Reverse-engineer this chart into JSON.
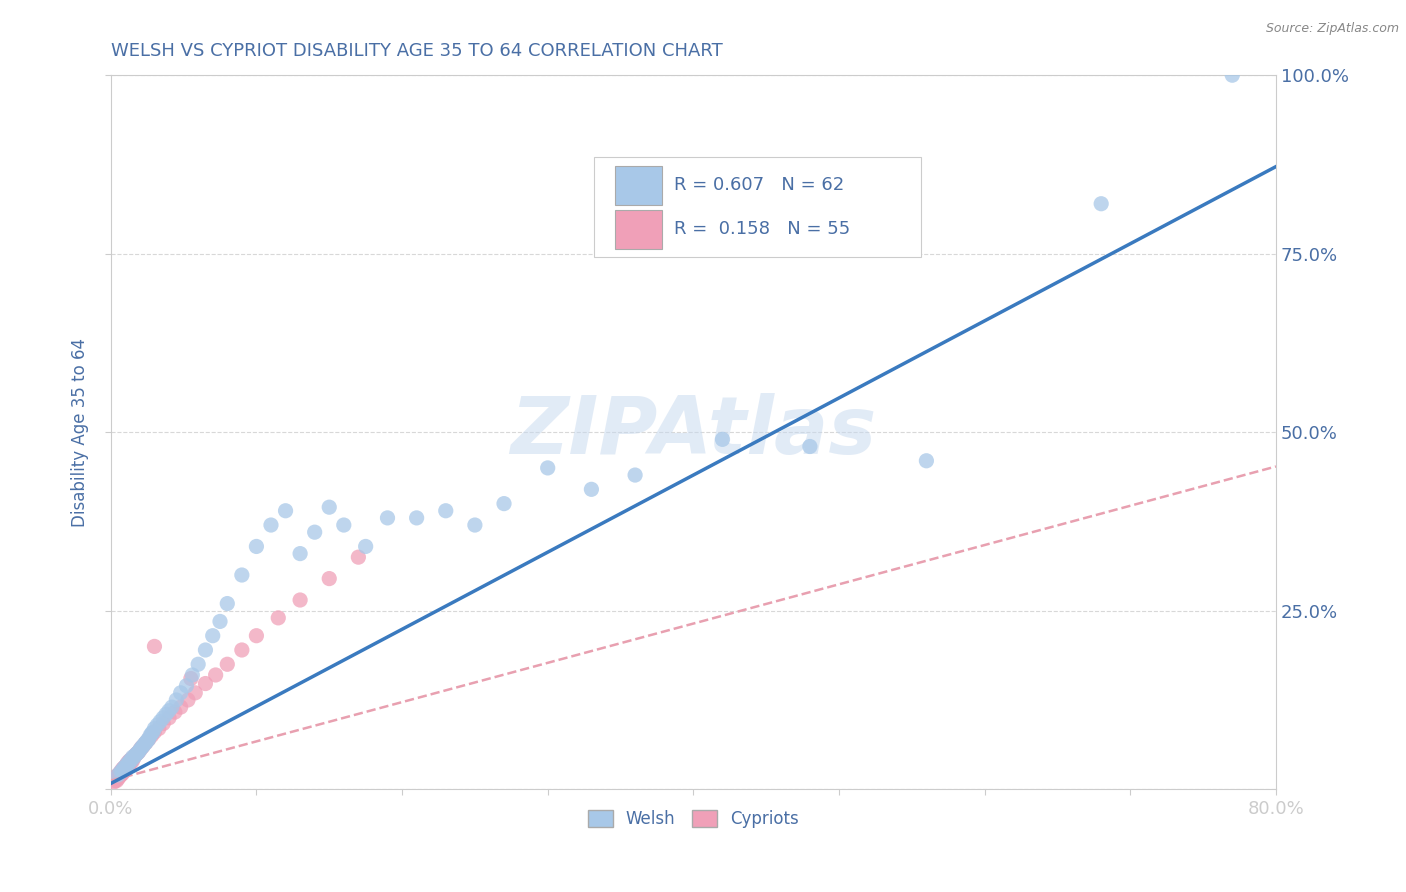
{
  "title": "WELSH VS CYPRIOT DISABILITY AGE 35 TO 64 CORRELATION CHART",
  "source_text": "Source: ZipAtlas.com",
  "ylabel": "Disability Age 35 to 64",
  "watermark": "ZIPAtlas",
  "xlim": [
    0.0,
    0.8
  ],
  "ylim": [
    0.0,
    1.0
  ],
  "xticks": [
    0.0,
    0.1,
    0.2,
    0.3,
    0.4,
    0.5,
    0.6,
    0.7,
    0.8
  ],
  "xticklabels": [
    "0.0%",
    "",
    "",
    "",
    "",
    "",
    "",
    "",
    "80.0%"
  ],
  "ytick_positions": [
    0.0,
    0.25,
    0.5,
    0.75,
    1.0
  ],
  "ytick_labels_right": [
    "",
    "25.0%",
    "50.0%",
    "75.0%",
    "100.0%"
  ],
  "welsh_color": "#a8c8e8",
  "cypriot_color": "#f0a0b8",
  "welsh_line_color": "#3a7abf",
  "cypriot_line_color": "#e8a0b0",
  "title_color": "#4a6fa5",
  "tick_label_color": "#4a6fa5",
  "legend_r_welsh": "0.607",
  "legend_n_welsh": "62",
  "legend_r_cypriot": "0.158",
  "legend_n_cypriot": "55",
  "welsh_x": [
    0.005,
    0.007,
    0.008,
    0.009,
    0.01,
    0.011,
    0.012,
    0.013,
    0.014,
    0.015,
    0.016,
    0.017,
    0.018,
    0.019,
    0.02,
    0.021,
    0.022,
    0.023,
    0.024,
    0.025,
    0.026,
    0.027,
    0.028,
    0.029,
    0.03,
    0.032,
    0.034,
    0.036,
    0.038,
    0.04,
    0.042,
    0.045,
    0.048,
    0.052,
    0.056,
    0.06,
    0.065,
    0.07,
    0.075,
    0.08,
    0.09,
    0.1,
    0.11,
    0.12,
    0.13,
    0.14,
    0.15,
    0.16,
    0.175,
    0.19,
    0.21,
    0.23,
    0.25,
    0.27,
    0.3,
    0.33,
    0.36,
    0.42,
    0.48,
    0.56,
    0.68,
    0.77
  ],
  "welsh_y": [
    0.02,
    0.025,
    0.025,
    0.03,
    0.03,
    0.035,
    0.035,
    0.04,
    0.04,
    0.045,
    0.045,
    0.048,
    0.05,
    0.052,
    0.055,
    0.058,
    0.06,
    0.063,
    0.065,
    0.068,
    0.07,
    0.075,
    0.078,
    0.08,
    0.085,
    0.09,
    0.095,
    0.1,
    0.105,
    0.11,
    0.115,
    0.125,
    0.135,
    0.145,
    0.16,
    0.175,
    0.195,
    0.215,
    0.235,
    0.26,
    0.3,
    0.34,
    0.37,
    0.39,
    0.33,
    0.36,
    0.395,
    0.37,
    0.34,
    0.38,
    0.38,
    0.39,
    0.37,
    0.4,
    0.45,
    0.42,
    0.44,
    0.49,
    0.48,
    0.46,
    0.82,
    1.0
  ],
  "cypriot_x": [
    0.002,
    0.003,
    0.003,
    0.004,
    0.004,
    0.005,
    0.005,
    0.006,
    0.006,
    0.007,
    0.007,
    0.008,
    0.008,
    0.009,
    0.009,
    0.01,
    0.01,
    0.011,
    0.011,
    0.012,
    0.012,
    0.013,
    0.013,
    0.014,
    0.014,
    0.015,
    0.016,
    0.017,
    0.018,
    0.019,
    0.02,
    0.021,
    0.022,
    0.024,
    0.026,
    0.028,
    0.03,
    0.033,
    0.036,
    0.04,
    0.044,
    0.048,
    0.053,
    0.058,
    0.065,
    0.072,
    0.08,
    0.09,
    0.1,
    0.115,
    0.13,
    0.15,
    0.17,
    0.03,
    0.055
  ],
  "cypriot_y": [
    0.01,
    0.012,
    0.015,
    0.012,
    0.018,
    0.015,
    0.02,
    0.018,
    0.022,
    0.02,
    0.025,
    0.022,
    0.028,
    0.025,
    0.03,
    0.028,
    0.032,
    0.03,
    0.035,
    0.032,
    0.038,
    0.035,
    0.04,
    0.038,
    0.042,
    0.04,
    0.045,
    0.048,
    0.05,
    0.052,
    0.055,
    0.058,
    0.06,
    0.065,
    0.07,
    0.075,
    0.08,
    0.085,
    0.092,
    0.1,
    0.108,
    0.115,
    0.125,
    0.135,
    0.148,
    0.16,
    0.175,
    0.195,
    0.215,
    0.24,
    0.265,
    0.295,
    0.325,
    0.2,
    0.155
  ],
  "background_color": "#ffffff",
  "grid_color": "#d8d8d8",
  "figsize": [
    14.06,
    8.92
  ],
  "dpi": 100
}
